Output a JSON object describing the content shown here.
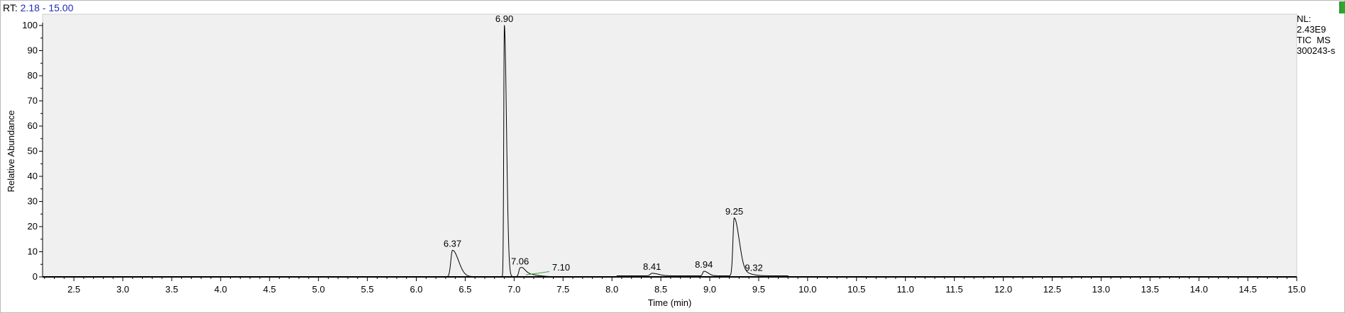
{
  "header": {
    "rt_prefix": "RT:",
    "rt_range": "2.18 - 15.00"
  },
  "info_panel": {
    "lines": [
      "NL:",
      "2.43E9",
      "TIC  MS",
      "300243-s"
    ]
  },
  "colors": {
    "trace": "#000000",
    "plot_background": "#f0f0f0",
    "baseline_marker": "#37a737",
    "header_range": "#1c2fb3",
    "corner_tab": "#2fa72c"
  },
  "chart_data": {
    "type": "line",
    "xlabel": "Time (min)",
    "ylabel": "Relative Abundance",
    "xlim": [
      2.18,
      15.0
    ],
    "ylim": [
      0,
      100
    ],
    "x_ticks": [
      "2.5",
      "3.0",
      "3.5",
      "4.0",
      "4.5",
      "5.0",
      "5.5",
      "6.0",
      "6.5",
      "7.0",
      "7.5",
      "8.0",
      "8.5",
      "9.0",
      "9.5",
      "10.0",
      "10.5",
      "11.0",
      "11.5",
      "12.0",
      "12.5",
      "13.0",
      "13.5",
      "14.0",
      "14.5",
      "15.0"
    ],
    "y_ticks": [
      "0",
      "10",
      "20",
      "30",
      "40",
      "50",
      "60",
      "70",
      "80",
      "90",
      "100"
    ],
    "grid": false,
    "peaks": [
      {
        "label": "6.37",
        "rt": 6.37,
        "height": 10.5,
        "width": 0.028
      },
      {
        "label": "6.90",
        "rt": 6.9,
        "height": 100,
        "width": 0.01
      },
      {
        "label": "7.06",
        "rt": 7.06,
        "height": 3.0,
        "width": 0.02
      },
      {
        "label": "7.10",
        "rt": 7.1,
        "height": 1.2,
        "width": 0.05
      },
      {
        "label": "8.41",
        "rt": 8.41,
        "height": 1.0,
        "width": 0.03
      },
      {
        "label": "8.94",
        "rt": 8.94,
        "height": 1.8,
        "width": 0.02
      },
      {
        "label": "9.25",
        "rt": 9.25,
        "height": 23,
        "width": 0.022
      },
      {
        "label": "9.32",
        "rt": 9.32,
        "height": 1.4,
        "width": 0.04
      }
    ]
  }
}
